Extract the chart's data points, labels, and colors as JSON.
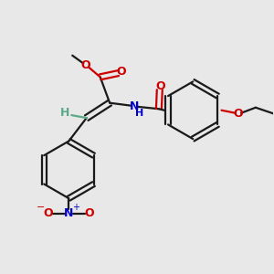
{
  "bg_color": "#e8e8e8",
  "bond_color": "#1a1a1a",
  "o_color": "#cc0000",
  "n_color": "#0000cc",
  "h_color": "#5aaa88",
  "fig_size": [
    3.0,
    3.0
  ],
  "dpi": 100,
  "xlim": [
    0,
    10
  ],
  "ylim": [
    0,
    10
  ]
}
